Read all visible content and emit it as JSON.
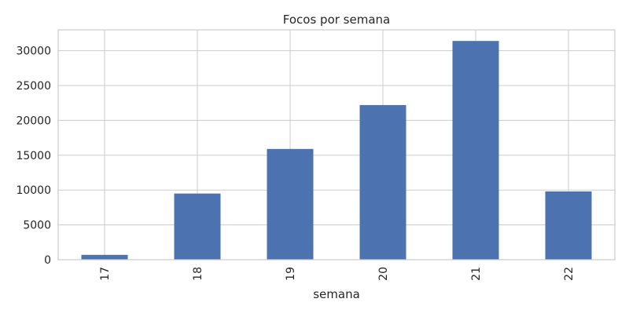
{
  "chart_data": {
    "type": "bar",
    "title": "Focos por semana",
    "xlabel": "semana",
    "ylabel": "",
    "categories": [
      "17",
      "18",
      "19",
      "20",
      "21",
      "22"
    ],
    "values": [
      700,
      9500,
      15900,
      22200,
      31400,
      9800
    ],
    "ylim": [
      0,
      33000
    ],
    "yticks": [
      0,
      5000,
      10000,
      15000,
      20000,
      25000,
      30000
    ],
    "grid": true,
    "legend": "none",
    "bar_color": "#4c72b0"
  }
}
